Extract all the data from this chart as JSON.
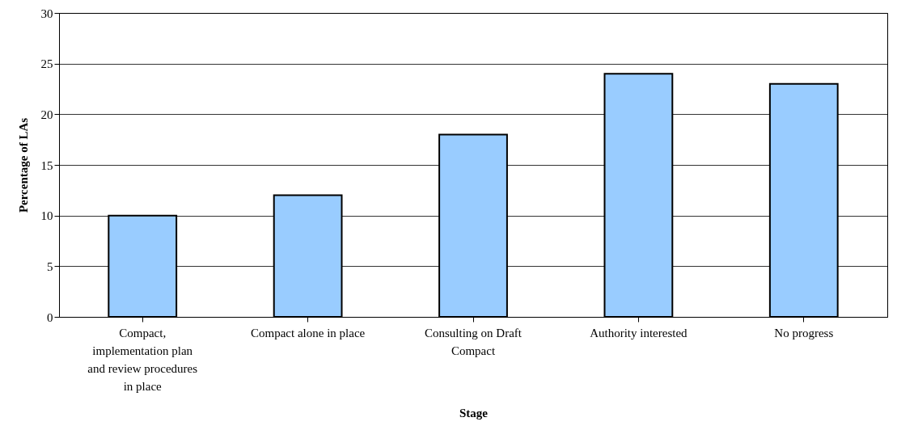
{
  "chart_data": {
    "type": "bar",
    "xlabel": "Stage",
    "ylabel": "Percentage of LAs",
    "categories": [
      "Compact, implementation plan and review procedures in place",
      "Compact alone in place",
      "Consulting on Draft Compact",
      "Authority interested",
      "No progress"
    ],
    "values": [
      10,
      12,
      18,
      24,
      23
    ],
    "color": "#99ccff",
    "ylim": [
      0,
      30
    ],
    "yticks": [
      0,
      5,
      10,
      15,
      20,
      25,
      30
    ],
    "grid": "y"
  }
}
